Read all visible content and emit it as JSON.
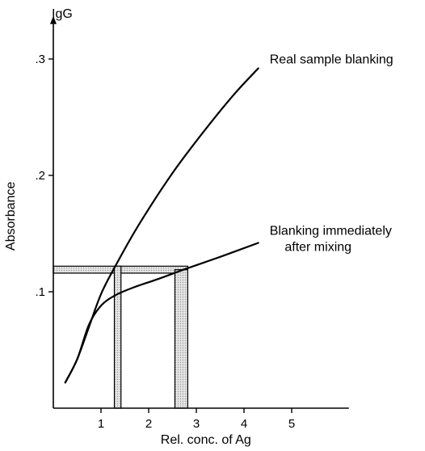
{
  "chart_data": {
    "type": "line",
    "title": "",
    "corner_label": "IgG",
    "xlabel": "Rel. conc. of Ag",
    "ylabel": "Absorbance",
    "xlim": [
      0,
      6.2
    ],
    "ylim": [
      0,
      0.33
    ],
    "x_ticks": [
      1,
      2,
      3,
      4,
      5
    ],
    "x_tick_labels": [
      "1",
      "2",
      "3",
      "4",
      "5"
    ],
    "y_ticks": [
      0.1,
      0.2,
      0.3
    ],
    "y_tick_labels": [
      ".1",
      ".2",
      ".3"
    ],
    "grid": false,
    "series": [
      {
        "label_lines": [
          "Real sample blanking"
        ],
        "color": "#000000",
        "x": [
          0.25,
          0.5,
          0.75,
          1.0,
          1.3,
          1.8,
          2.5,
          3.2,
          3.8,
          4.3
        ],
        "y": [
          0.022,
          0.042,
          0.07,
          0.098,
          0.122,
          0.158,
          0.202,
          0.24,
          0.27,
          0.292
        ]
      },
      {
        "label_lines": [
          "Blanking immediately",
          "after mixing"
        ],
        "color": "#000000",
        "x": [
          0.25,
          0.5,
          0.75,
          1.0,
          1.3,
          1.7,
          2.2,
          2.8,
          3.5,
          4.3
        ],
        "y": [
          0.022,
          0.042,
          0.072,
          0.088,
          0.097,
          0.104,
          0.111,
          0.12,
          0.13,
          0.142
        ]
      }
    ],
    "bands": {
      "color": "#d8d8d8",
      "horizontal": {
        "y_from": 0.116,
        "y_to": 0.122,
        "x_to": 2.82
      },
      "vertical": [
        {
          "x_from": 1.28,
          "x_to": 1.42,
          "y_to": 0.122
        },
        {
          "x_from": 2.55,
          "x_to": 2.82,
          "y_to": 0.119
        }
      ]
    }
  }
}
